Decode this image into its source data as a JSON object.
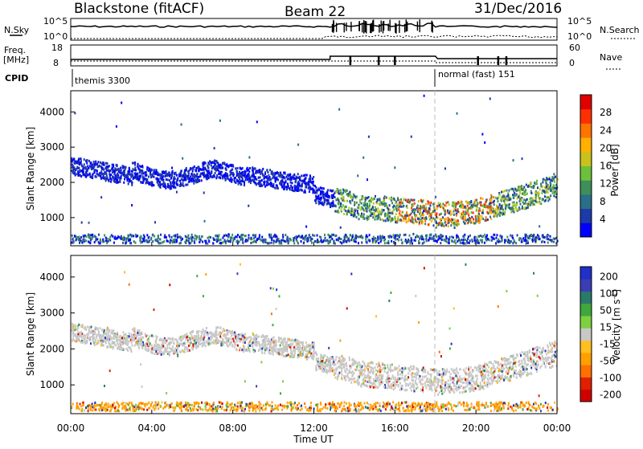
{
  "header": {
    "station": "Blackstone (fitACF)",
    "beam": "Beam 22",
    "date": "31/Dec/2016"
  },
  "top_panels": {
    "nsky_label": "N.Sky",
    "nsky_ticks": [
      "10^5",
      "10^0"
    ],
    "nsearch_label": "N.Search",
    "nsearch_ticks": [
      "10^5",
      "10^0"
    ],
    "freq_label": "Freq.",
    "freq_unit": "[MHz]",
    "freq_ticks": [
      "18",
      "8"
    ],
    "nave_label": "Nave",
    "nave_ticks": [
      "60",
      "0"
    ],
    "cpid_label": "CPID",
    "cpid_mode1": "themis 3300",
    "cpid_mode2": "normal (fast) 151"
  },
  "colors": {
    "power": [
      "#0000ff",
      "#1e3aa8",
      "#2a6e8a",
      "#3e8f5a",
      "#6dc03a",
      "#c9c21d",
      "#ffb000",
      "#ff7300",
      "#ff3000",
      "#e00000"
    ],
    "velocity": [
      "#2030c8",
      "#3c3cb4",
      "#2a7a6a",
      "#3fa83c",
      "#7ed040",
      "#c8c8c8",
      "#ffc020",
      "#ffa000",
      "#ff7000",
      "#e02000",
      "#d00000"
    ]
  },
  "chart_data": [
    {
      "type": "heatmap",
      "name": "power",
      "xlabel": "",
      "ylabel": "Slant Range [km]",
      "y_ticks": [
        "1000",
        "2000",
        "3000",
        "4000"
      ],
      "ylim": [
        200,
        4600
      ],
      "xlim_hours": [
        0,
        24
      ],
      "colorbar_label": "Power [dB]",
      "colorbar_ticks": [
        "4",
        "8",
        "12",
        "16",
        "20",
        "24",
        "28"
      ],
      "colorbar_range": [
        0,
        32
      ]
    },
    {
      "type": "heatmap",
      "name": "velocity",
      "xlabel": "Time UT",
      "ylabel": "Slant Range [km]",
      "y_ticks": [
        "1000",
        "2000",
        "3000",
        "4000"
      ],
      "ylim": [
        200,
        4600
      ],
      "xlim_hours": [
        0,
        24
      ],
      "x_ticks": [
        "00:00",
        "04:00",
        "08:00",
        "12:00",
        "16:00",
        "20:00",
        "00:00"
      ],
      "colorbar_label": "Velocity [m s^-1]",
      "colorbar_ticks": [
        "200",
        "100",
        "50",
        "15",
        "-15",
        "-50",
        "-100",
        "-200"
      ]
    }
  ]
}
